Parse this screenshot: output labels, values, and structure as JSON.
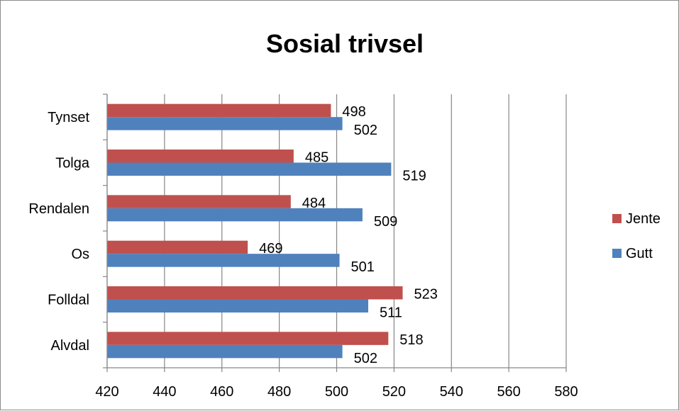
{
  "chart_data": {
    "type": "bar",
    "orientation": "horizontal",
    "title": "Sosial trivsel",
    "categories": [
      "Tynset",
      "Tolga",
      "Rendalen",
      "Os",
      "Folldal",
      "Alvdal"
    ],
    "series": [
      {
        "name": "Jente",
        "color": "#c0504d",
        "values": [
          498,
          485,
          484,
          469,
          523,
          518
        ]
      },
      {
        "name": "Gutt",
        "color": "#4f81bd",
        "values": [
          502,
          519,
          509,
          501,
          511,
          502
        ]
      }
    ],
    "xlim": [
      420,
      580
    ],
    "xticks": [
      "420",
      "440",
      "460",
      "480",
      "500",
      "520",
      "540",
      "560",
      "580"
    ],
    "grid": true,
    "legend_position": "right"
  }
}
